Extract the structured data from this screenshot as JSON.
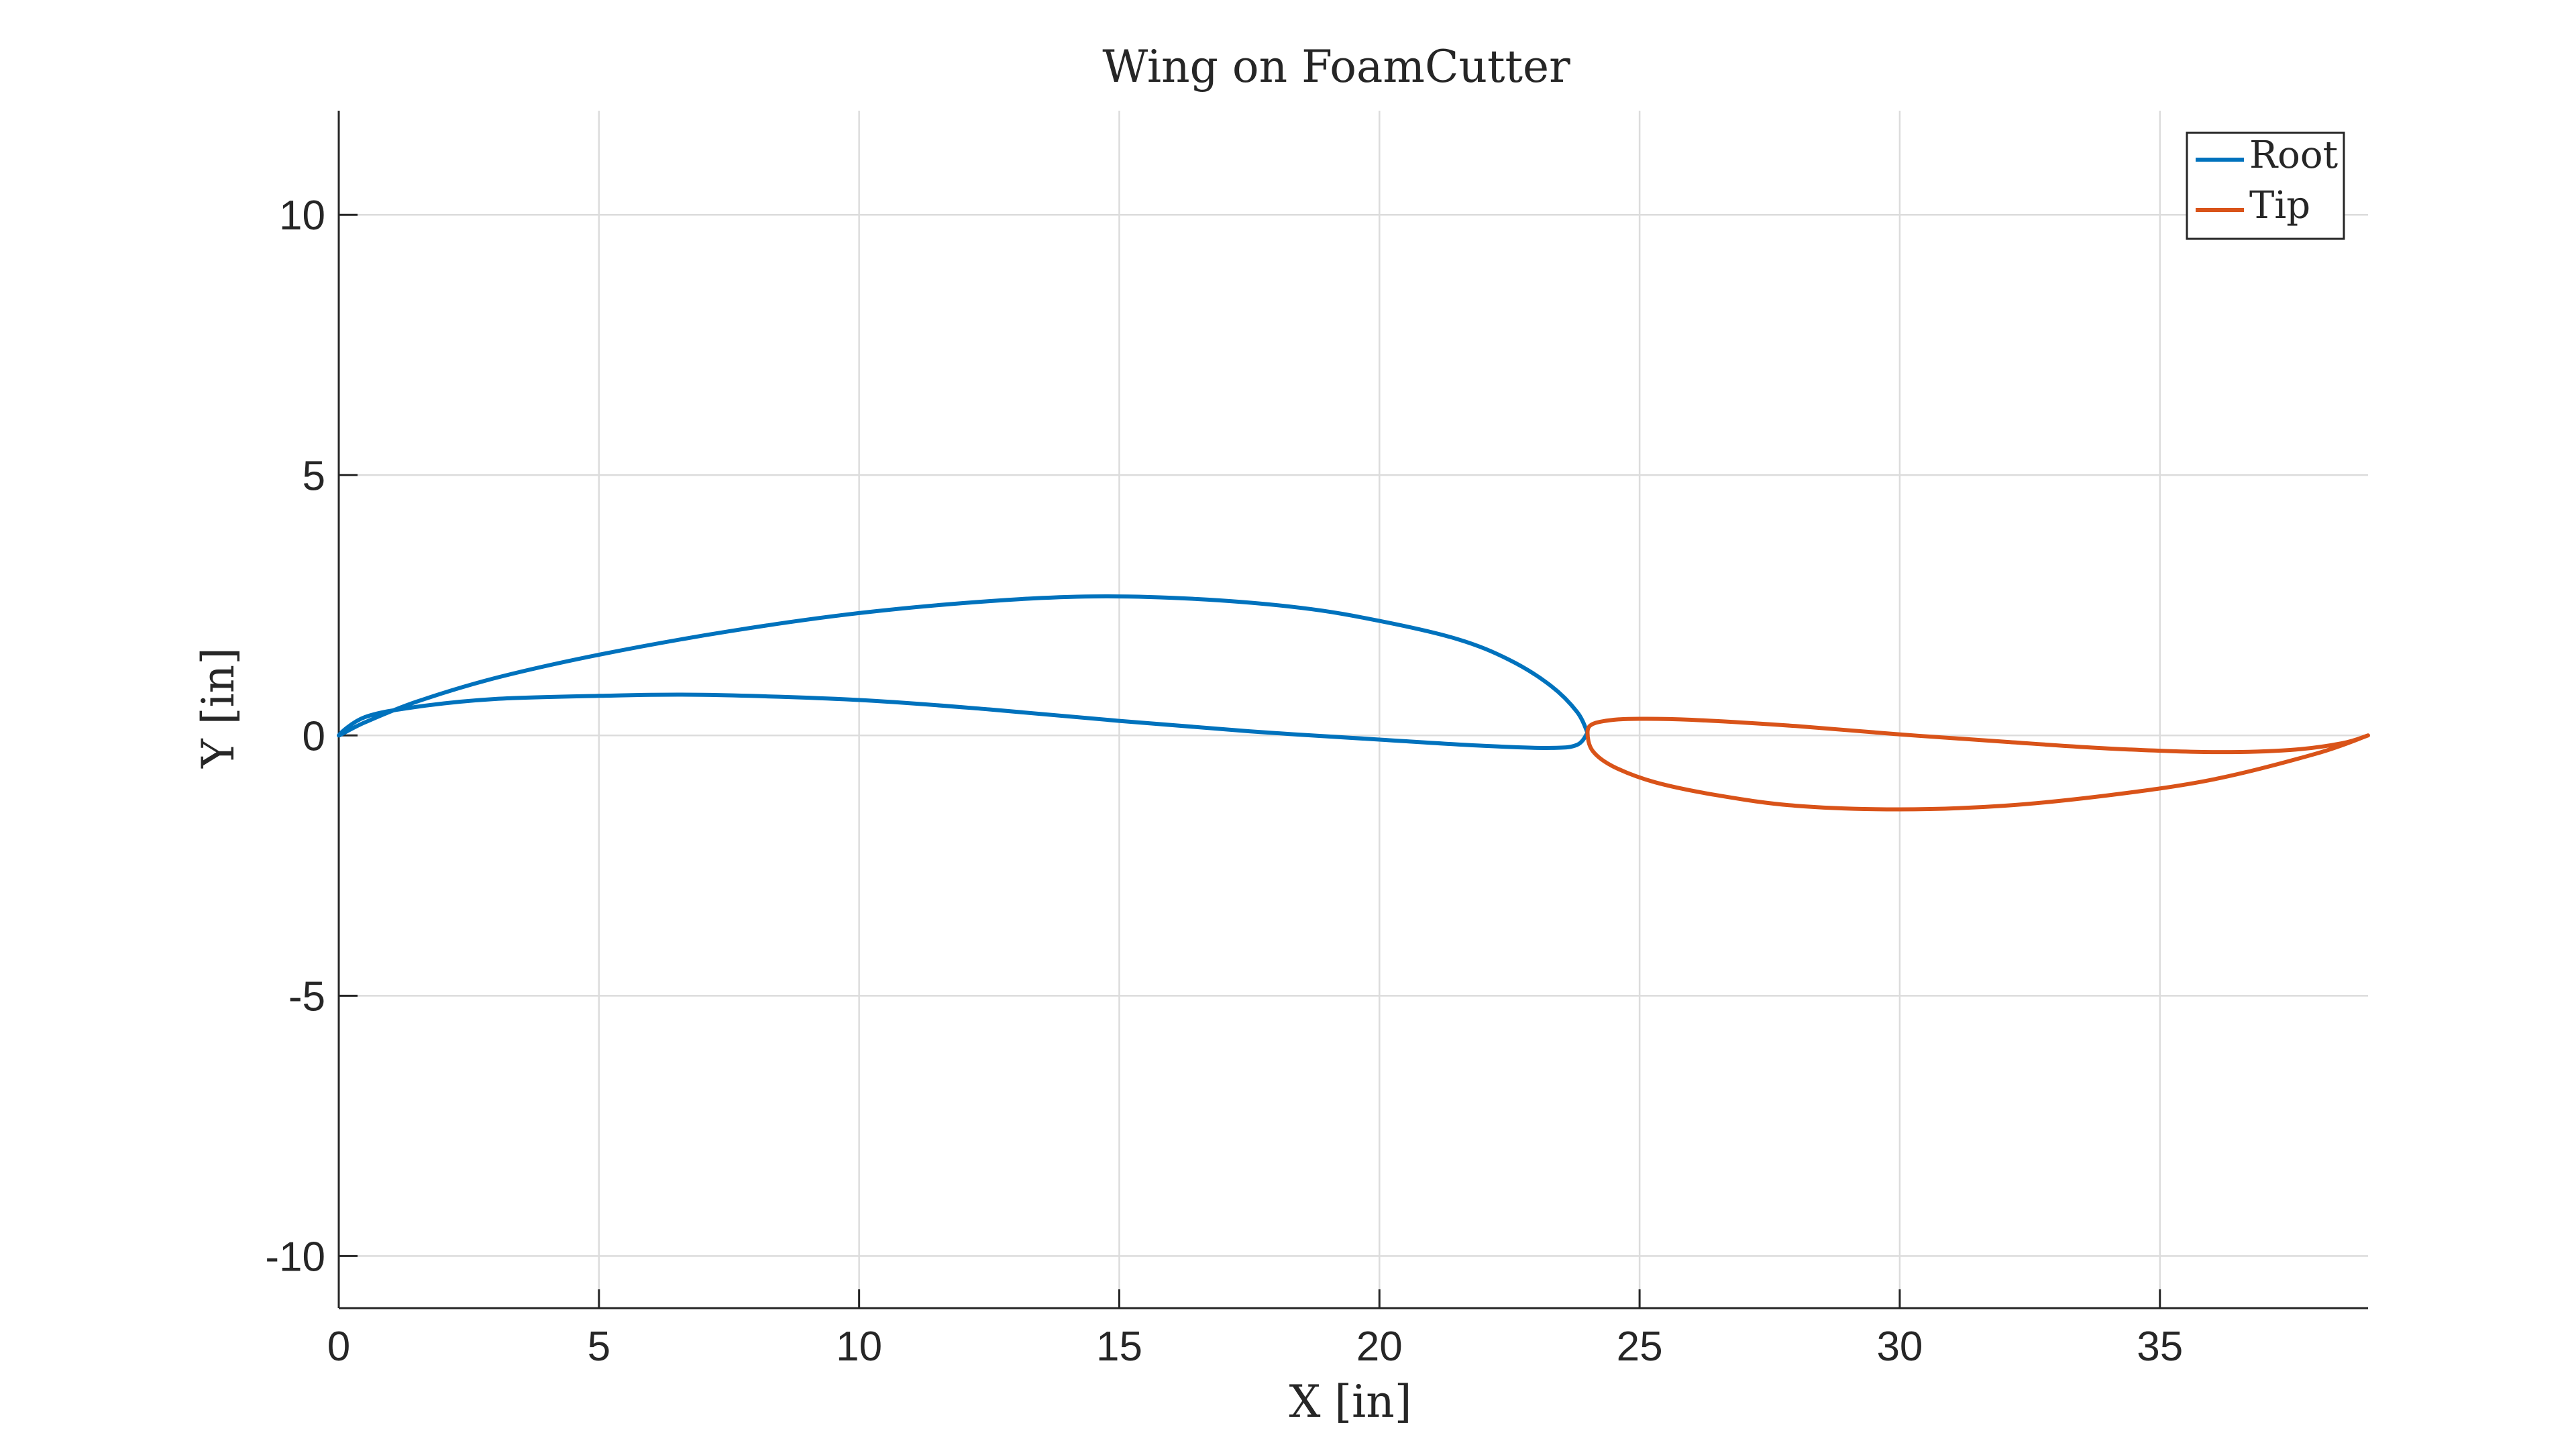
{
  "chart_data": {
    "type": "line",
    "title": "Wing on FoamCutter",
    "xlabel": "X [in]",
    "ylabel": "Y [in]",
    "xlim": [
      0,
      39
    ],
    "ylim": [
      -11,
      12
    ],
    "xticks": [
      0,
      5,
      10,
      15,
      20,
      25,
      30,
      35
    ],
    "yticks": [
      -10,
      -5,
      0,
      5,
      10
    ],
    "xtick_labels": [
      "0",
      "5",
      "10",
      "15",
      "20",
      "25",
      "30",
      "35"
    ],
    "ytick_labels": [
      "-10",
      "-5",
      "0",
      "5",
      "10"
    ],
    "grid": true,
    "legend_position": "top-right",
    "series": [
      {
        "name": "Root",
        "color": "#0072BD",
        "x": [
          24.0,
          23.8,
          23.3,
          22.5,
          21.5,
          20.0,
          18.5,
          16.5,
          14.5,
          12.5,
          10.0,
          7.5,
          5.0,
          3.0,
          1.5,
          0.5,
          0.0,
          0.5,
          1.5,
          3.0,
          5.0,
          7.0,
          10.0,
          12.5,
          15.0,
          17.5,
          20.0,
          22.0,
          23.3,
          23.8,
          24.0
        ],
        "y": [
          0.05,
          0.45,
          0.95,
          1.45,
          1.85,
          2.2,
          2.45,
          2.62,
          2.67,
          2.58,
          2.35,
          2.0,
          1.55,
          1.1,
          0.65,
          0.25,
          0.0,
          0.35,
          0.55,
          0.7,
          0.76,
          0.78,
          0.68,
          0.5,
          0.28,
          0.08,
          -0.08,
          -0.2,
          -0.24,
          -0.18,
          0.05
        ]
      },
      {
        "name": "Tip",
        "color": "#D95319",
        "x": [
          39.0,
          38.0,
          36.0,
          34.0,
          32.0,
          30.0,
          28.0,
          26.5,
          25.3,
          24.5,
          24.1,
          24.0,
          24.1,
          24.5,
          25.0,
          26.0,
          28.0,
          30.0,
          32.0,
          34.0,
          36.0,
          37.5,
          38.5,
          39.0
        ],
        "y": [
          0.0,
          -0.35,
          -0.85,
          -1.15,
          -1.35,
          -1.42,
          -1.35,
          -1.15,
          -0.9,
          -0.6,
          -0.3,
          0.05,
          0.22,
          0.3,
          0.32,
          0.3,
          0.18,
          0.02,
          -0.12,
          -0.25,
          -0.32,
          -0.28,
          -0.15,
          0.0
        ]
      }
    ]
  }
}
